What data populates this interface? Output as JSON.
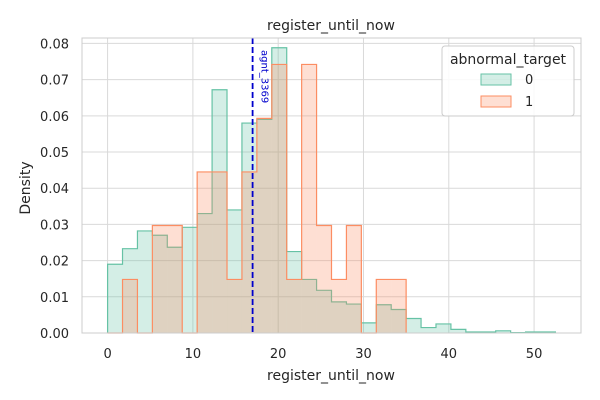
{
  "chart_data": {
    "type": "histogram-step",
    "title": "register_until_now",
    "xlabel": "register_until_now",
    "ylabel": "Density",
    "xlim": [
      -3,
      55.5
    ],
    "ylim": [
      0,
      0.0815
    ],
    "xticks": [
      0,
      10,
      20,
      30,
      40,
      50
    ],
    "yticks": [
      0.0,
      0.01,
      0.02,
      0.03,
      0.04,
      0.05,
      0.06,
      0.07,
      0.08
    ],
    "ytick_labels": [
      "0.00",
      "0.01",
      "0.02",
      "0.03",
      "0.04",
      "0.05",
      "0.06",
      "0.07",
      "0.08"
    ],
    "grid": true,
    "legend": {
      "title": "abnormal_target",
      "placement": "top-right",
      "entries": [
        "0",
        "1"
      ]
    },
    "series": [
      {
        "name": "0",
        "color": "#66c2a5",
        "fill": "rgba(102,194,165,0.28)",
        "bins": [
          0,
          1.75,
          3.5,
          5.25,
          7,
          8.75,
          10.5,
          12.25,
          14,
          15.75,
          17.5,
          19.25,
          21,
          22.75,
          24.5,
          26.25,
          28,
          29.75,
          31.5,
          33.25,
          35,
          36.75,
          38.5,
          40.25,
          42,
          43.75,
          45.5,
          47.25,
          49,
          50.75,
          52.5
        ],
        "values": [
          0.019,
          0.0233,
          0.0282,
          0.027,
          0.0237,
          0.0292,
          0.033,
          0.0672,
          0.034,
          0.058,
          0.059,
          0.0788,
          0.0225,
          0.0148,
          0.0118,
          0.0086,
          0.008,
          0.0028,
          0.0078,
          0.0065,
          0.004,
          0.0015,
          0.0025,
          0.001,
          0.0003,
          0.0003,
          0.0006,
          0.0001,
          0.0003,
          0.0003
        ]
      },
      {
        "name": "1",
        "color": "#fc8d62",
        "fill": "rgba(252,141,98,0.28)",
        "bins": [
          0,
          1.75,
          3.5,
          5.25,
          7,
          8.75,
          10.5,
          12.25,
          14,
          15.75,
          17.5,
          19.25,
          21,
          22.75,
          24.5,
          26.25,
          28,
          29.75,
          31.5,
          33.25,
          35
        ],
        "values": [
          0,
          0.0148,
          0,
          0.0297,
          0.0297,
          0,
          0.0445,
          0.0445,
          0.0148,
          0.0445,
          0.0593,
          0.0742,
          0.0148,
          0.0742,
          0.0297,
          0.0148,
          0.0297,
          0,
          0.0148,
          0.0148
        ]
      }
    ],
    "annotations": [
      {
        "type": "vline",
        "x": 17,
        "color": "#0000cc",
        "label": "agnt_3369"
      }
    ]
  }
}
